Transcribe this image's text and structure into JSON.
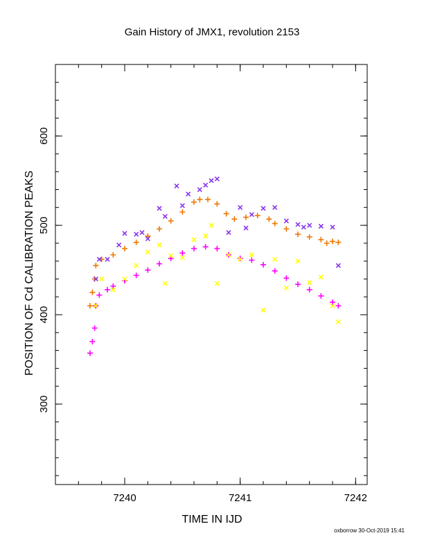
{
  "chart_data": {
    "type": "scatter",
    "title": "Gain History of JMX1, revolution 2153",
    "xlabel": "TIME IN IJD",
    "ylabel": "POSITION OF Cd CALIBRATION PEAKS",
    "xlim": [
      7239.4,
      7242.1
    ],
    "ylim": [
      210,
      680
    ],
    "x_ticks": [
      7240,
      7241,
      7242
    ],
    "x_tick_labels": [
      "7240",
      "7241",
      "7242"
    ],
    "y_ticks": [
      300,
      400,
      500,
      600
    ],
    "y_tick_labels": [
      "300",
      "400",
      "500",
      "600"
    ],
    "grid": false,
    "series": [
      {
        "marker": "plus",
        "color": "#ee7700",
        "points": [
          [
            7239.7,
            410
          ],
          [
            7239.72,
            425
          ],
          [
            7239.74,
            440
          ],
          [
            7239.75,
            455
          ],
          [
            7239.8,
            462
          ],
          [
            7239.9,
            467
          ],
          [
            7240.0,
            474
          ],
          [
            7240.1,
            481
          ],
          [
            7240.2,
            488
          ],
          [
            7240.3,
            496
          ],
          [
            7240.4,
            505
          ],
          [
            7240.5,
            515
          ],
          [
            7240.6,
            526
          ],
          [
            7240.65,
            529
          ],
          [
            7240.72,
            529
          ],
          [
            7240.8,
            524
          ],
          [
            7240.88,
            513
          ],
          [
            7240.95,
            507
          ],
          [
            7241.05,
            509
          ],
          [
            7241.15,
            511
          ],
          [
            7241.25,
            507
          ],
          [
            7241.3,
            502
          ],
          [
            7241.4,
            496
          ],
          [
            7241.5,
            490
          ],
          [
            7241.6,
            487
          ],
          [
            7241.7,
            484
          ],
          [
            7241.75,
            480
          ],
          [
            7241.8,
            482
          ],
          [
            7241.85,
            481
          ]
        ]
      },
      {
        "marker": "plus",
        "color": "#ff00ff",
        "points": [
          [
            7239.7,
            357
          ],
          [
            7239.72,
            370
          ],
          [
            7239.74,
            385
          ],
          [
            7239.75,
            410
          ],
          [
            7239.78,
            422
          ],
          [
            7239.85,
            428
          ],
          [
            7239.9,
            432
          ],
          [
            7240.0,
            438
          ],
          [
            7240.1,
            444
          ],
          [
            7240.2,
            450
          ],
          [
            7240.3,
            457
          ],
          [
            7240.4,
            463
          ],
          [
            7240.5,
            469
          ],
          [
            7240.6,
            474
          ],
          [
            7240.7,
            476
          ],
          [
            7240.8,
            474
          ],
          [
            7240.9,
            467
          ],
          [
            7241.0,
            463
          ],
          [
            7241.1,
            461
          ],
          [
            7241.2,
            456
          ],
          [
            7241.3,
            449
          ],
          [
            7241.4,
            441
          ],
          [
            7241.5,
            434
          ],
          [
            7241.6,
            428
          ],
          [
            7241.7,
            421
          ],
          [
            7241.8,
            414
          ],
          [
            7241.85,
            410
          ]
        ]
      },
      {
        "marker": "x",
        "color": "#8833ee",
        "points": [
          [
            7239.75,
            440
          ],
          [
            7239.78,
            462
          ],
          [
            7239.85,
            462
          ],
          [
            7239.95,
            478
          ],
          [
            7240.0,
            491
          ],
          [
            7240.1,
            490
          ],
          [
            7240.15,
            492
          ],
          [
            7240.2,
            485
          ],
          [
            7240.3,
            519
          ],
          [
            7240.35,
            510
          ],
          [
            7240.45,
            544
          ],
          [
            7240.5,
            522
          ],
          [
            7240.55,
            535
          ],
          [
            7240.65,
            540
          ],
          [
            7240.7,
            545
          ],
          [
            7240.75,
            550
          ],
          [
            7240.8,
            552
          ],
          [
            7240.9,
            492
          ],
          [
            7241.0,
            520
          ],
          [
            7241.05,
            497
          ],
          [
            7241.1,
            512
          ],
          [
            7241.2,
            519
          ],
          [
            7241.3,
            520
          ],
          [
            7241.4,
            505
          ],
          [
            7241.5,
            501
          ],
          [
            7241.55,
            498
          ],
          [
            7241.6,
            500
          ],
          [
            7241.7,
            499
          ],
          [
            7241.8,
            498
          ],
          [
            7241.85,
            455
          ]
        ]
      },
      {
        "marker": "x",
        "color": "#ffff00",
        "points": [
          [
            7239.75,
            410
          ],
          [
            7239.8,
            440
          ],
          [
            7239.9,
            428
          ],
          [
            7240.0,
            440
          ],
          [
            7240.1,
            455
          ],
          [
            7240.2,
            470
          ],
          [
            7240.3,
            478
          ],
          [
            7240.35,
            435
          ],
          [
            7240.4,
            466
          ],
          [
            7240.5,
            464
          ],
          [
            7240.6,
            484
          ],
          [
            7240.7,
            488
          ],
          [
            7240.75,
            500
          ],
          [
            7240.8,
            435
          ],
          [
            7240.9,
            467
          ],
          [
            7241.0,
            462
          ],
          [
            7241.1,
            467
          ],
          [
            7241.2,
            405
          ],
          [
            7241.3,
            462
          ],
          [
            7241.4,
            430
          ],
          [
            7241.5,
            460
          ],
          [
            7241.6,
            436
          ],
          [
            7241.7,
            442
          ],
          [
            7241.8,
            410
          ],
          [
            7241.85,
            392
          ]
        ]
      }
    ]
  },
  "footer": {
    "credit": "oxborrow 30-Oct-2019 15:41"
  }
}
